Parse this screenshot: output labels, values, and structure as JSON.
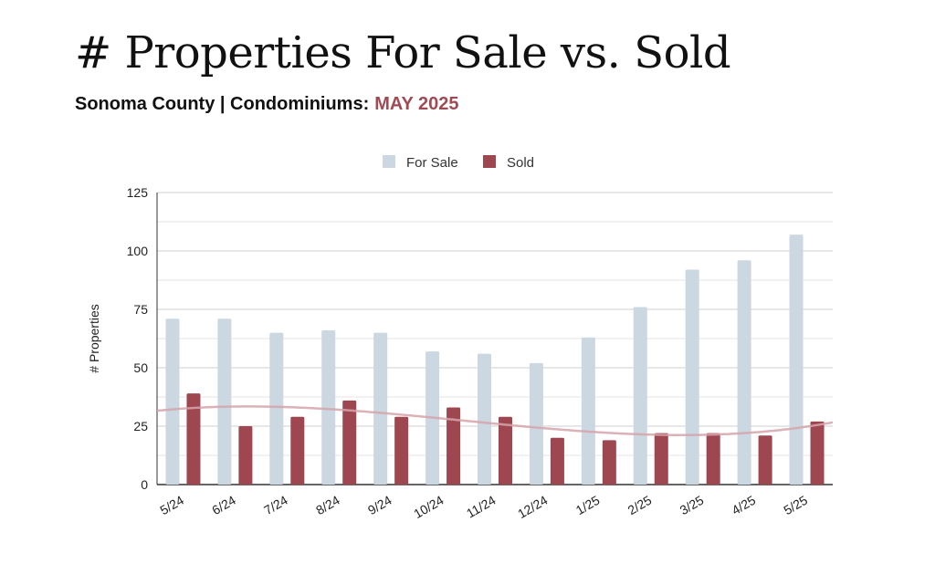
{
  "header": {
    "title": "# Properties For Sale vs. Sold",
    "subtitle_prefix": "Sonoma County | Condominiums:",
    "subtitle_highlight": "MAY 2025"
  },
  "colors": {
    "for_sale": "#cbd7e1",
    "sold": "#9e4750",
    "trend": "#d6a5ab",
    "highlight": "#a04a55"
  },
  "chart_data": {
    "type": "bar",
    "ylabel": "# Properties",
    "xlabel": "",
    "ylim": [
      0,
      125
    ],
    "yticks": [
      0,
      25,
      50,
      75,
      100,
      125
    ],
    "grid": true,
    "legend": "top",
    "categories": [
      "5/24",
      "6/24",
      "7/24",
      "8/24",
      "9/24",
      "10/24",
      "11/24",
      "12/24",
      "1/25",
      "2/25",
      "3/25",
      "4/25",
      "5/25"
    ],
    "series": [
      {
        "name": "For Sale",
        "values": [
          71,
          71,
          65,
          66,
          65,
          57,
          56,
          52,
          63,
          76,
          92,
          96,
          107
        ]
      },
      {
        "name": "Sold",
        "values": [
          39,
          25,
          29,
          36,
          29,
          33,
          29,
          20,
          19,
          22,
          22,
          21,
          27
        ]
      }
    ],
    "trendline": {
      "series": "Sold",
      "type": "polynomial"
    }
  }
}
